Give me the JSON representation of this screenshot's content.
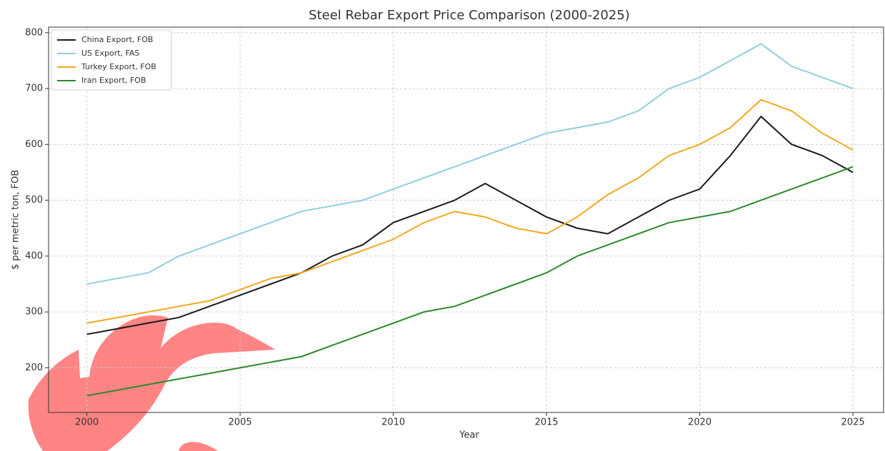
{
  "chart_data": {
    "type": "line",
    "title": "Steel Rebar Export Price Comparison (2000-2025)",
    "x_label": "Year",
    "y_label": "$ per metric ton, FOB",
    "x": [
      2000,
      2001,
      2002,
      2003,
      2004,
      2005,
      2006,
      2007,
      2008,
      2009,
      2010,
      2011,
      2012,
      2013,
      2014,
      2015,
      2016,
      2017,
      2018,
      2019,
      2020,
      2021,
      2022,
      2023,
      2024,
      2025
    ],
    "series": [
      {
        "name": "China Export, FOB",
        "color": "#1a1a1a",
        "values": [
          260,
          270,
          280,
          290,
          310,
          330,
          350,
          370,
          400,
          420,
          460,
          480,
          500,
          530,
          500,
          470,
          450,
          440,
          470,
          500,
          520,
          580,
          650,
          600,
          580,
          550
        ]
      },
      {
        "name": "US Export, FAS",
        "color": "#8ecfe0",
        "values": [
          350,
          360,
          370,
          400,
          420,
          440,
          460,
          480,
          490,
          500,
          520,
          540,
          560,
          580,
          600,
          620,
          630,
          640,
          660,
          700,
          720,
          750,
          780,
          740,
          720,
          700
        ]
      },
      {
        "name": "Turkey Export, FOB",
        "color": "#f2a91f",
        "values": [
          280,
          290,
          300,
          310,
          320,
          340,
          360,
          370,
          390,
          410,
          430,
          460,
          480,
          470,
          450,
          440,
          470,
          510,
          540,
          580,
          600,
          630,
          680,
          660,
          620,
          590
        ]
      },
      {
        "name": "Iran Export, FOB",
        "color": "#2a8a2a",
        "values": [
          150,
          160,
          170,
          180,
          190,
          200,
          210,
          220,
          240,
          260,
          280,
          300,
          310,
          330,
          350,
          370,
          400,
          420,
          440,
          460,
          470,
          480,
          500,
          520,
          540,
          560
        ]
      }
    ],
    "xlim": [
      1998.75,
      2026
    ],
    "ylim": [
      120,
      810
    ],
    "xticks": [
      2000,
      2005,
      2010,
      2015,
      2020,
      2025
    ],
    "yticks": [
      200,
      300,
      400,
      500,
      600,
      700,
      800
    ],
    "grid": true,
    "legend": "upper-left"
  }
}
